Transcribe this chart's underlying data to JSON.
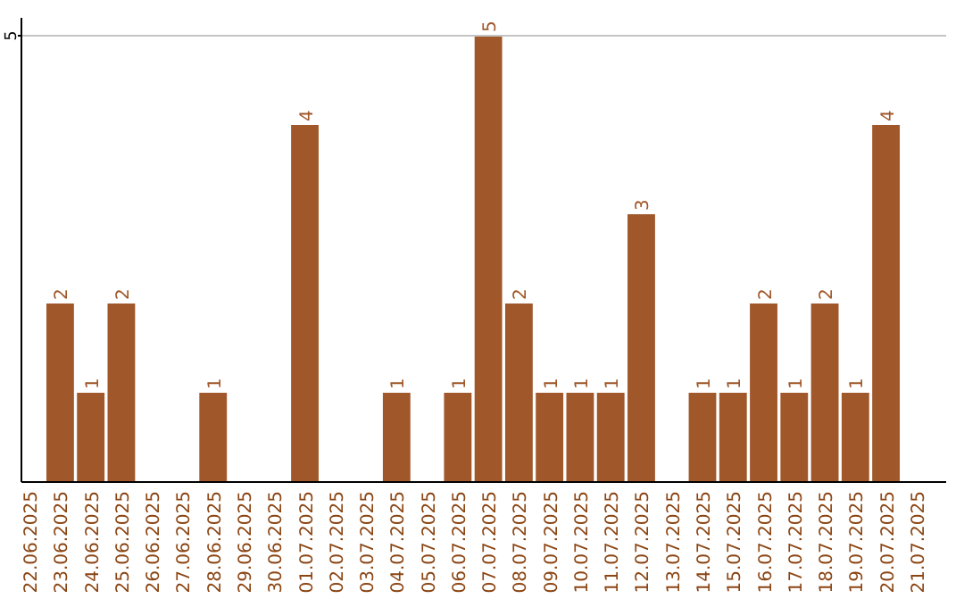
{
  "chart_data": {
    "type": "bar",
    "categories": [
      "22.06.2025",
      "23.06.2025",
      "24.06.2025",
      "25.06.2025",
      "26.06.2025",
      "27.06.2025",
      "28.06.2025",
      "29.06.2025",
      "30.06.2025",
      "01.07.2025",
      "02.07.2025",
      "03.07.2025",
      "04.07.2025",
      "05.07.2025",
      "06.07.2025",
      "07.07.2025",
      "08.07.2025",
      "09.07.2025",
      "10.07.2025",
      "11.07.2025",
      "12.07.2025",
      "13.07.2025",
      "14.07.2025",
      "15.07.2025",
      "16.07.2025",
      "17.07.2025",
      "18.07.2025",
      "19.07.2025",
      "20.07.2025",
      "21.07.2025"
    ],
    "values": [
      0,
      2,
      1,
      2,
      0,
      0,
      1,
      0,
      0,
      4,
      0,
      0,
      1,
      0,
      1,
      5,
      2,
      1,
      1,
      1,
      3,
      0,
      1,
      1,
      2,
      1,
      2,
      1,
      4,
      0
    ],
    "value_labels": [
      null,
      "2",
      "1",
      "2",
      null,
      null,
      "1",
      null,
      null,
      "4",
      null,
      null,
      "1",
      null,
      "1",
      "5",
      "2",
      "1",
      "1",
      "1",
      "3",
      null,
      "1",
      "1",
      "2",
      "1",
      "2",
      "1",
      "4",
      null
    ],
    "color": "#a0572a",
    "ylim": [
      0,
      5.2
    ],
    "yticks": [
      5
    ],
    "grid": "y"
  }
}
